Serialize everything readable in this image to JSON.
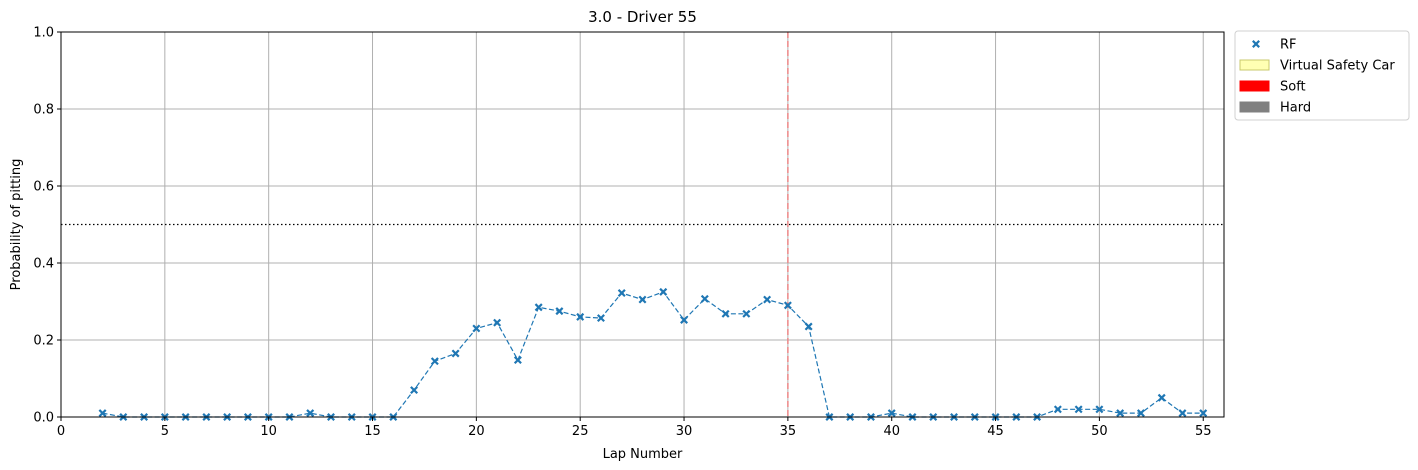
{
  "chart_data": {
    "type": "scatter",
    "title": "3.0 - Driver 55",
    "xlabel": "Lap Number",
    "ylabel": "Probability of pitting",
    "xlim": [
      0,
      56
    ],
    "ylim": [
      0,
      1.0
    ],
    "xticks": [
      0,
      5,
      10,
      15,
      20,
      25,
      30,
      35,
      40,
      45,
      50,
      55
    ],
    "yticks": [
      0.0,
      0.2,
      0.4,
      0.6,
      0.8,
      1.0
    ],
    "ytick_labels": [
      "0.0",
      "0.2",
      "0.4",
      "0.6",
      "0.8",
      "1.0"
    ],
    "grid": true,
    "threshold": 0.5,
    "vertical_marker_lap": 35,
    "legend_position": "outside-top-right",
    "legend": [
      {
        "label": "RF",
        "kind": "marker",
        "color": "#1f77b4"
      },
      {
        "label": "Virtual Safety Car",
        "kind": "patch",
        "color": "#ffffb3",
        "edge": "#c8c86e"
      },
      {
        "label": "Soft",
        "kind": "patch",
        "color": "#ff0000"
      },
      {
        "label": "Hard",
        "kind": "patch",
        "color": "#808080"
      }
    ],
    "series": [
      {
        "name": "RF",
        "color": "#1f77b4",
        "x": [
          2,
          3,
          4,
          5,
          6,
          7,
          8,
          9,
          10,
          11,
          12,
          13,
          14,
          15,
          16,
          17,
          18,
          19,
          20,
          21,
          22,
          23,
          24,
          25,
          26,
          27,
          28,
          29,
          30,
          31,
          32,
          33,
          34,
          35,
          36,
          37,
          38,
          39,
          40,
          41,
          42,
          43,
          44,
          45,
          46,
          47,
          48,
          49,
          50,
          51,
          52,
          53,
          54,
          55
        ],
        "y": [
          0.01,
          0.0,
          0.0,
          0.0,
          0.0,
          0.0,
          0.0,
          0.0,
          0.0,
          0.0,
          0.01,
          0.0,
          0.0,
          0.0,
          0.0,
          0.07,
          0.145,
          0.165,
          0.23,
          0.245,
          0.148,
          0.285,
          0.275,
          0.26,
          0.257,
          0.322,
          0.305,
          0.325,
          0.252,
          0.307,
          0.268,
          0.268,
          0.305,
          0.29,
          0.235,
          0.0,
          0.0,
          0.0,
          0.01,
          0.0,
          0.0,
          0.0,
          0.0,
          0.0,
          0.0,
          0.0,
          0.02,
          0.02,
          0.02,
          0.01,
          0.01,
          0.05,
          0.01,
          0.01
        ]
      }
    ]
  }
}
